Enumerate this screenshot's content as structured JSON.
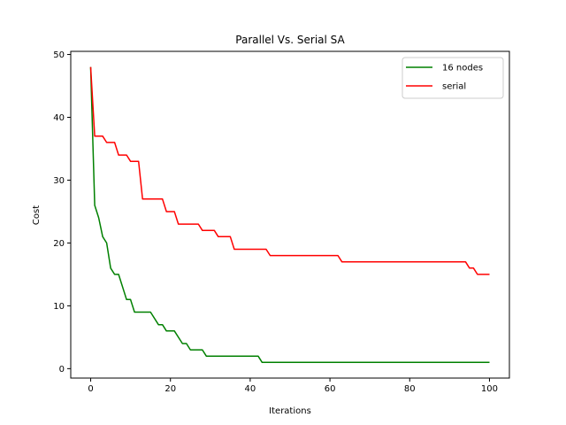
{
  "chart_data": {
    "type": "line",
    "title": "Parallel Vs. Serial SA",
    "xlabel": "Iterations",
    "ylabel": "Cost",
    "xlim": [
      -5,
      105
    ],
    "ylim": [
      -1.5,
      50.5
    ],
    "xticks": [
      0,
      20,
      40,
      60,
      80,
      100
    ],
    "yticks": [
      0,
      10,
      20,
      30,
      40,
      50
    ],
    "grid": false,
    "legend_position": "top-right",
    "series": [
      {
        "name": "16 nodes",
        "color": "#008000",
        "points": [
          [
            0,
            48
          ],
          [
            1,
            26
          ],
          [
            2,
            24
          ],
          [
            3,
            21
          ],
          [
            4,
            20
          ],
          [
            5,
            16
          ],
          [
            6,
            15
          ],
          [
            7,
            15
          ],
          [
            9,
            11
          ],
          [
            10,
            11
          ],
          [
            11,
            9
          ],
          [
            15,
            9
          ],
          [
            17,
            7
          ],
          [
            18,
            7
          ],
          [
            19,
            6
          ],
          [
            21,
            6
          ],
          [
            23,
            4
          ],
          [
            24,
            4
          ],
          [
            25,
            3
          ],
          [
            28,
            3
          ],
          [
            29,
            2
          ],
          [
            42,
            2
          ],
          [
            43,
            1
          ],
          [
            100,
            1
          ]
        ]
      },
      {
        "name": "serial",
        "color": "#ff0000",
        "points": [
          [
            0,
            48
          ],
          [
            1,
            37
          ],
          [
            3,
            37
          ],
          [
            4,
            36
          ],
          [
            6,
            36
          ],
          [
            7,
            34
          ],
          [
            9,
            34
          ],
          [
            10,
            33
          ],
          [
            12,
            33
          ],
          [
            13,
            27
          ],
          [
            18,
            27
          ],
          [
            19,
            25
          ],
          [
            21,
            25
          ],
          [
            22,
            23
          ],
          [
            27,
            23
          ],
          [
            28,
            22
          ],
          [
            31,
            22
          ],
          [
            32,
            21
          ],
          [
            35,
            21
          ],
          [
            36,
            19
          ],
          [
            44,
            19
          ],
          [
            45,
            18
          ],
          [
            62,
            18
          ],
          [
            63,
            17
          ],
          [
            94,
            17
          ],
          [
            95,
            16
          ],
          [
            96,
            16
          ],
          [
            97,
            15
          ],
          [
            100,
            15
          ]
        ]
      }
    ]
  }
}
